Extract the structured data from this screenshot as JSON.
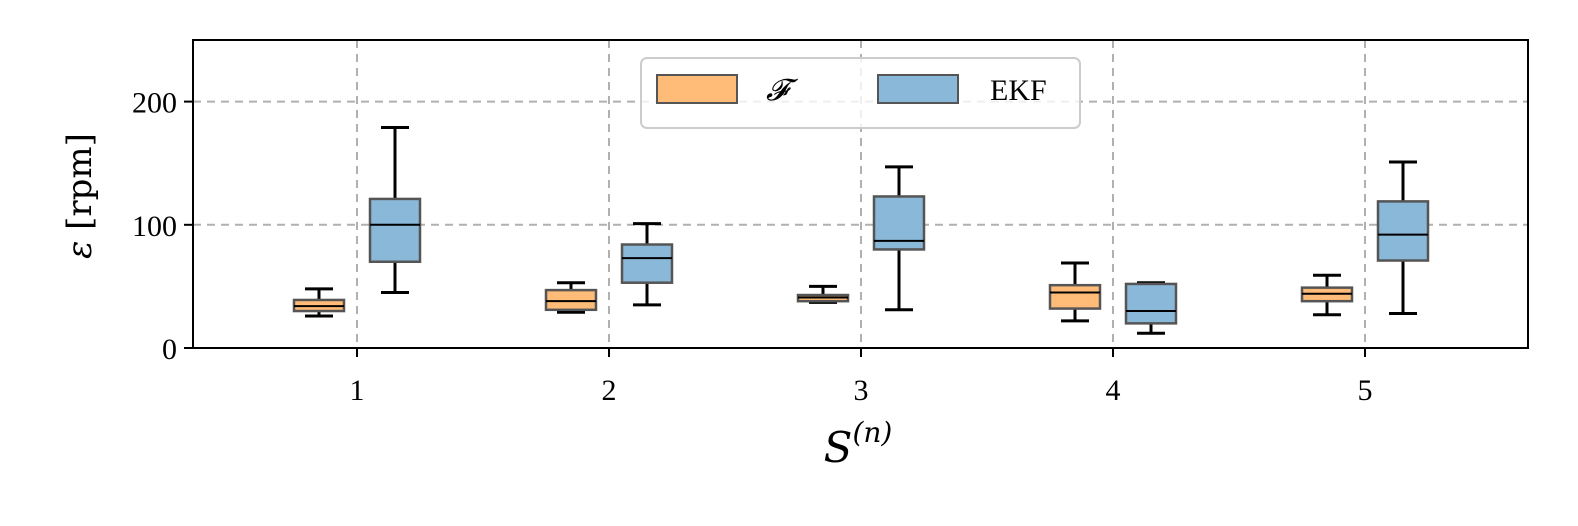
{
  "chart_data": {
    "type": "box",
    "title": "",
    "ylabel": {
      "symbol": "ε",
      "unit": "[rpm]"
    },
    "xlabel": {
      "base": "S",
      "sup": "(n)"
    },
    "categories": [
      "1",
      "2",
      "3",
      "4",
      "5"
    ],
    "ylim": [
      0,
      250
    ],
    "yticks": [
      0,
      100,
      200
    ],
    "grid": true,
    "legend_position": "top-center",
    "series": [
      {
        "name": "𝓕",
        "color": "#ffbb78",
        "boxes": [
          {
            "whisker_low": 26,
            "q1": 30,
            "median": 34,
            "q3": 39,
            "whisker_high": 48
          },
          {
            "whisker_low": 29,
            "q1": 31,
            "median": 38,
            "q3": 47,
            "whisker_high": 53
          },
          {
            "whisker_low": 37,
            "q1": 38,
            "median": 41,
            "q3": 43,
            "whisker_high": 50
          },
          {
            "whisker_low": 22,
            "q1": 32,
            "median": 45,
            "q3": 51,
            "whisker_high": 69
          },
          {
            "whisker_low": 27,
            "q1": 38,
            "median": 44,
            "q3": 49,
            "whisker_high": 59
          }
        ]
      },
      {
        "name": "EKF",
        "color": "#89b8d9",
        "boxes": [
          {
            "whisker_low": 45,
            "q1": 70,
            "median": 100,
            "q3": 121,
            "whisker_high": 179
          },
          {
            "whisker_low": 35,
            "q1": 53,
            "median": 73,
            "q3": 84,
            "whisker_high": 101
          },
          {
            "whisker_low": 31,
            "q1": 80,
            "median": 87,
            "q3": 123,
            "whisker_high": 147
          },
          {
            "whisker_low": 12,
            "q1": 20,
            "median": 30,
            "q3": 52,
            "whisker_high": 53
          },
          {
            "whisker_low": 28,
            "q1": 71,
            "median": 92,
            "q3": 119,
            "whisker_high": 151
          }
        ]
      }
    ]
  }
}
